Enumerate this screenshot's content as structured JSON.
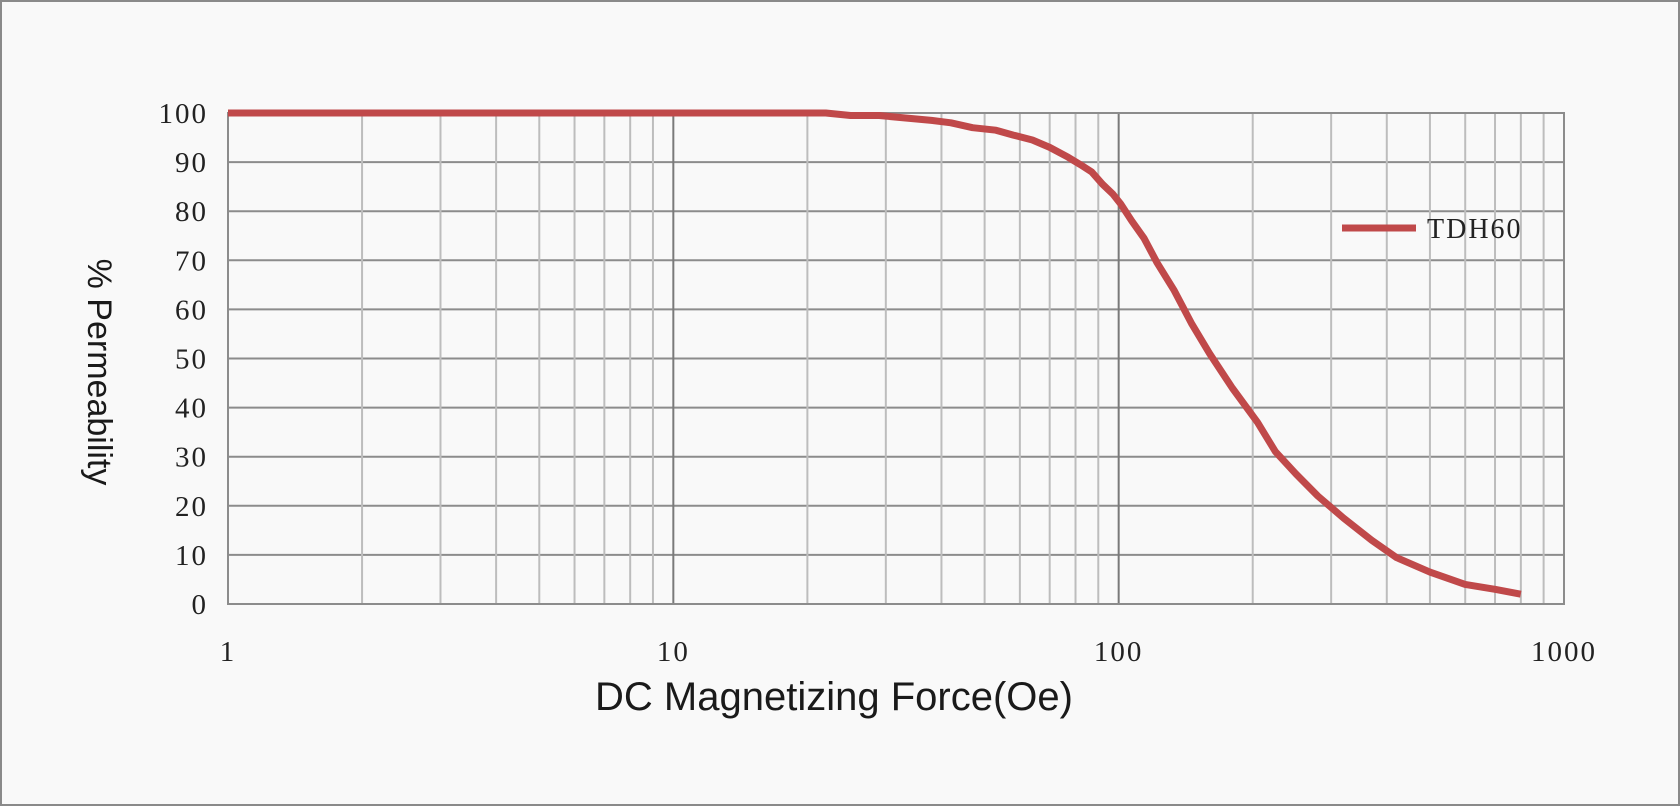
{
  "chart_data": {
    "type": "line",
    "title": "",
    "xlabel": "DC Magnetizing Force(Oe)",
    "ylabel": "% Permeability",
    "x_scale": "log",
    "xlim": [
      1,
      1000
    ],
    "ylim": [
      0,
      100
    ],
    "x_ticks": [
      "1",
      "10",
      "100",
      "1000"
    ],
    "y_ticks": [
      "0",
      "10",
      "20",
      "30",
      "40",
      "50",
      "60",
      "70",
      "80",
      "90",
      "100"
    ],
    "grid": true,
    "legend_position": "top-right",
    "series": [
      {
        "name": "TDH60",
        "color": "#c0494a",
        "x": [
          1,
          10,
          22,
          25,
          29,
          33,
          38,
          42,
          47,
          53,
          58,
          64,
          70,
          77,
          82,
          87,
          92,
          97,
          101,
          107,
          114,
          122,
          133,
          146,
          160,
          180,
          205,
          225,
          250,
          280,
          320,
          370,
          420,
          500,
          600,
          700,
          800
        ],
        "y": [
          100,
          100,
          100,
          99.5,
          99.5,
          99,
          98.5,
          98,
          97,
          96.5,
          95.5,
          94.5,
          93,
          91,
          89.5,
          88,
          85.5,
          83.5,
          81.5,
          78,
          74.5,
          69.5,
          64,
          57,
          51,
          44,
          37,
          31,
          26.5,
          22,
          17.5,
          13,
          9.5,
          6.5,
          4,
          3,
          2
        ]
      }
    ]
  }
}
